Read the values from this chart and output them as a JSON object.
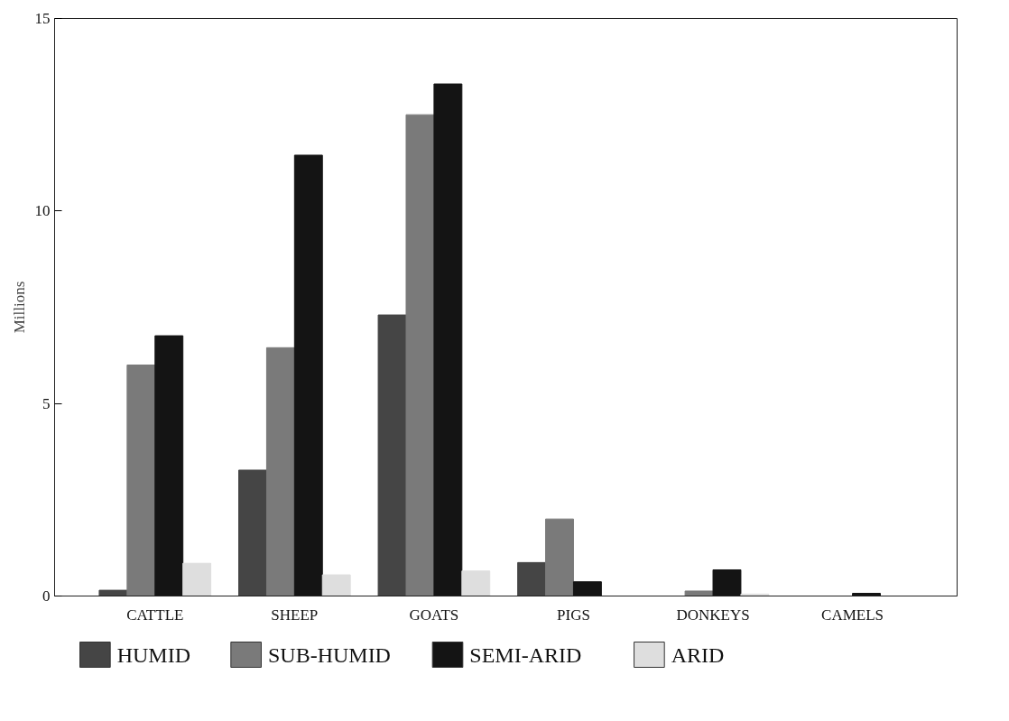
{
  "chart_data": {
    "type": "bar",
    "ylabel": "Millions",
    "categories": [
      "CATTLE",
      "SHEEP",
      "GOATS",
      "PIGS",
      "DONKEYS",
      "CAMELS"
    ],
    "series": [
      {
        "name": "HUMID",
        "color": "#454545",
        "values": [
          0.15,
          3.27,
          7.3,
          0.87,
          null,
          null
        ]
      },
      {
        "name": "SUB-HUMID",
        "color": "#7a7a7a",
        "values": [
          6.0,
          6.45,
          12.5,
          2.0,
          0.13,
          null
        ]
      },
      {
        "name": "SEMI-ARID",
        "color": "#141414",
        "values": [
          6.76,
          11.45,
          13.3,
          0.37,
          0.68,
          0.07
        ]
      },
      {
        "name": "ARID",
        "color": "#dedede",
        "values": [
          0.85,
          0.55,
          0.65,
          null,
          0.05,
          null
        ]
      }
    ],
    "ylim": [
      0,
      15
    ],
    "yticks": [
      0,
      5,
      10,
      15
    ],
    "grid": false,
    "legend": "bottom"
  }
}
